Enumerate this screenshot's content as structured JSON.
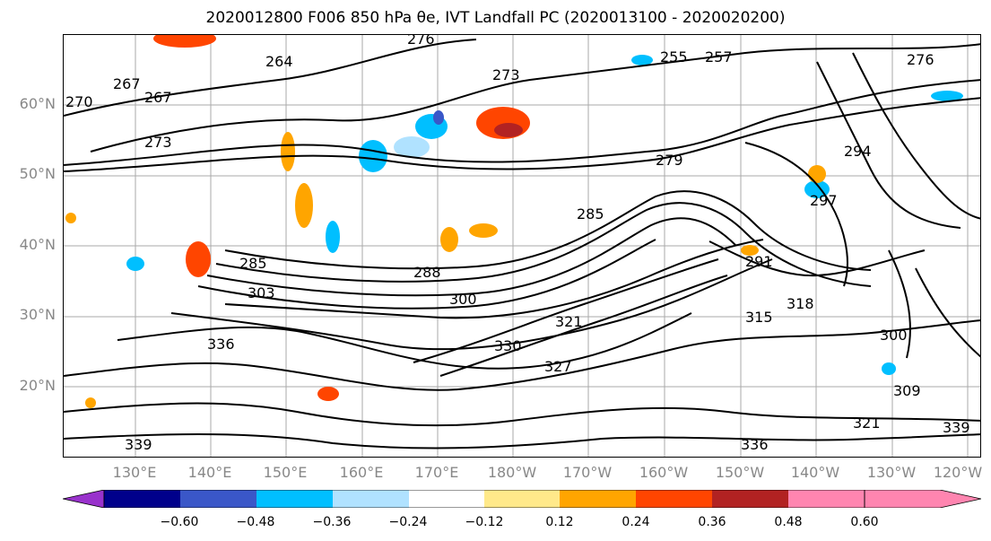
{
  "title": "2020012800 F006 850 hPa θe, IVT Landfall PC (2020013100 - 2020020200)",
  "lat_labels": [
    "60°N",
    "50°N",
    "40°N",
    "30°N",
    "20°N"
  ],
  "lon_labels": [
    "130°E",
    "140°E",
    "150°E",
    "160°E",
    "170°E",
    "180°W",
    "170°W",
    "160°W",
    "150°W",
    "140°W",
    "130°W",
    "120°W"
  ],
  "contour_labels": [
    "276",
    "270",
    "267",
    "267",
    "273",
    "264",
    "273",
    "279",
    "285",
    "285",
    "288",
    "300",
    "303",
    "336",
    "315",
    "318",
    "321",
    "327",
    "330",
    "336",
    "339",
    "291",
    "294",
    "297",
    "300",
    "309",
    "321",
    "339",
    "255",
    "257",
    "276"
  ],
  "colorbar": {
    "ticks": [
      "−0.60",
      "−0.48",
      "−0.36",
      "−0.24",
      "−0.12",
      "0.12",
      "0.24",
      "0.36",
      "0.48",
      "0.60"
    ],
    "colors": [
      "#9932cc",
      "#00008b",
      "#3a57c8",
      "#00bfff",
      "#b0e2ff",
      "#ffffff",
      "#ffe98a",
      "#ffa500",
      "#ff4500",
      "#b22222",
      "#ff85b0"
    ]
  }
}
